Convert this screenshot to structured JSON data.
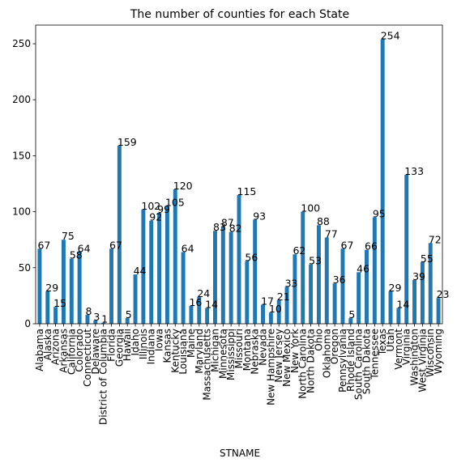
{
  "chart_data": {
    "type": "bar",
    "title": "The number of counties for each State",
    "xlabel": "STNAME",
    "ylabel": "",
    "ylim": [
      0,
      266.65
    ],
    "yticks": [
      0,
      50,
      100,
      150,
      200,
      250
    ],
    "grid": false,
    "bar_color": "#1f77b4",
    "categories": [
      "Alabama",
      "Alaska",
      "Arizona",
      "Arkansas",
      "California",
      "Colorado",
      "Connecticut",
      "Delaware",
      "District of Columbia",
      "Florida",
      "Georgia",
      "Hawaii",
      "Idaho",
      "Illinois",
      "Indiana",
      "Iowa",
      "Kansas",
      "Kentucky",
      "Louisiana",
      "Maine",
      "Maryland",
      "Massachusetts",
      "Michigan",
      "Minnesota",
      "Mississippi",
      "Missouri",
      "Montana",
      "Nebraska",
      "Nevada",
      "New Hampshire",
      "New Jersey",
      "New Mexico",
      "New York",
      "North Carolina",
      "North Dakota",
      "Ohio",
      "Oklahoma",
      "Oregon",
      "Pennsylvania",
      "Rhode Island",
      "South Carolina",
      "South Dakota",
      "Tennessee",
      "Texas",
      "Utah",
      "Vermont",
      "Virginia",
      "Washington",
      "West Virginia",
      "Wisconsin",
      "Wyoming"
    ],
    "values": [
      67,
      29,
      15,
      75,
      58,
      64,
      8,
      3,
      1,
      67,
      159,
      5,
      44,
      102,
      92,
      99,
      105,
      120,
      64,
      16,
      24,
      14,
      83,
      87,
      82,
      115,
      56,
      93,
      17,
      10,
      21,
      33,
      62,
      100,
      53,
      88,
      77,
      36,
      67,
      5,
      46,
      66,
      95,
      254,
      29,
      14,
      133,
      39,
      55,
      72,
      23
    ]
  }
}
